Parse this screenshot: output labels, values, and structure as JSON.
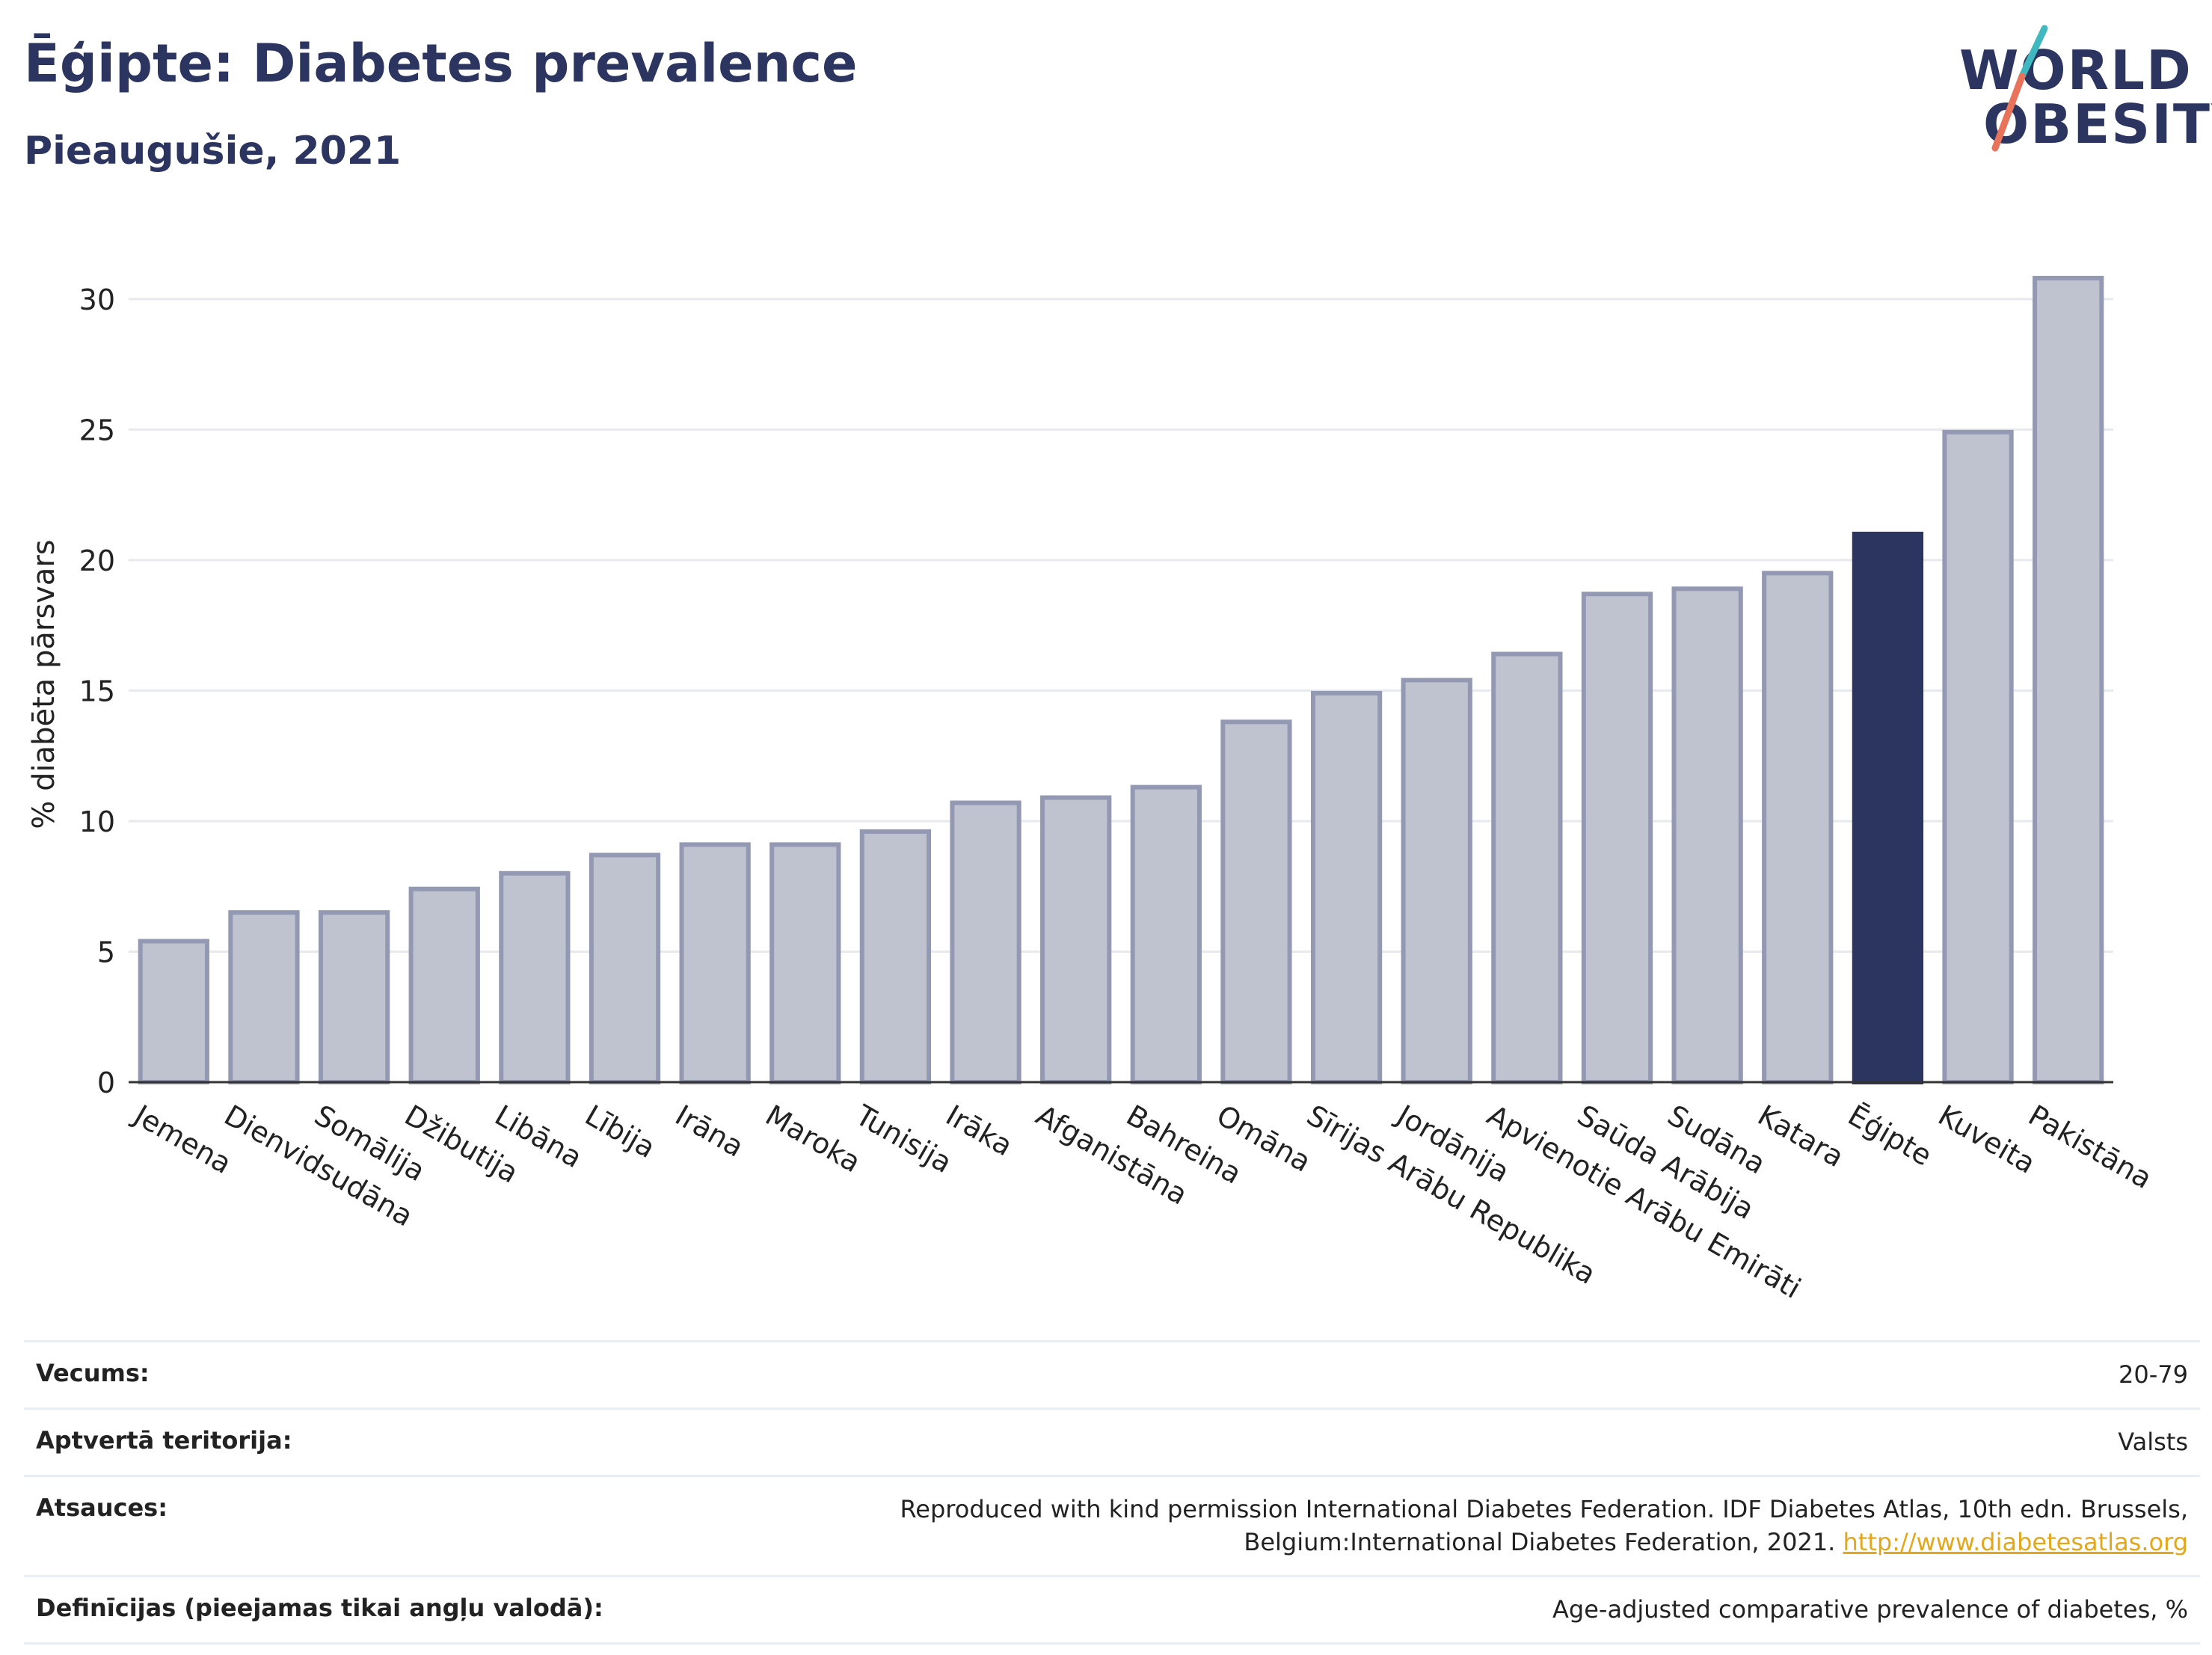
{
  "header": {
    "title": "Ēģipte: Diabetes prevalence",
    "subtitle": "Pieaugušie, 2021"
  },
  "logo": {
    "line1": "WORLD",
    "line2": "OBESITY",
    "colors": {
      "text": "#2b3560",
      "accent_teal": "#3fb8c0",
      "accent_orange": "#e8735a"
    }
  },
  "chart_data": {
    "type": "bar",
    "ylabel": "% diabēta pārsvars",
    "xlabel": "",
    "ylim": [
      0,
      32
    ],
    "yticks": [
      0,
      5,
      10,
      15,
      20,
      25,
      30
    ],
    "grid": true,
    "categories": [
      "Jemena",
      "Dienvidsudāna",
      "Somālija",
      "Džibutija",
      "Libāna",
      "Lībija",
      "Irāna",
      "Maroka",
      "Tunisija",
      "Irāka",
      "Afganistāna",
      "Bahreina",
      "Omāna",
      "Sīrijas Arābu Republika",
      "Jordānija",
      "Apvienotie Arābu Emirāti",
      "Saūda Arābija",
      "Sudāna",
      "Katara",
      "Ēģipte",
      "Kuveita",
      "Pakistāna"
    ],
    "values": [
      5.4,
      6.5,
      6.5,
      7.4,
      8.0,
      8.7,
      9.1,
      9.1,
      9.6,
      10.7,
      10.9,
      11.3,
      13.8,
      14.9,
      15.4,
      16.4,
      18.7,
      18.9,
      19.5,
      21.0,
      24.9,
      30.8
    ],
    "highlight": "Ēģipte",
    "colors": {
      "bar": "#bfc2cf",
      "bar_border": "#9499b3",
      "highlight": "#2b3560"
    }
  },
  "info_table": {
    "rows": [
      {
        "label": "Vecums:",
        "value": "20-79"
      },
      {
        "label": "Aptvertā teritorija:",
        "value": "Valsts"
      },
      {
        "label": "Atsauces:",
        "value": "Reproduced with kind permission International Diabetes Federation.  IDF Diabetes Atlas, 10th edn. Brussels, Belgium:International Diabetes Federation, 2021.",
        "link": "http://www.diabetesatlas.org"
      },
      {
        "label": "Definīcijas (pieejamas tikai angļu valodā):",
        "value": "Age-adjusted comparative prevalence of diabetes, %"
      }
    ]
  }
}
